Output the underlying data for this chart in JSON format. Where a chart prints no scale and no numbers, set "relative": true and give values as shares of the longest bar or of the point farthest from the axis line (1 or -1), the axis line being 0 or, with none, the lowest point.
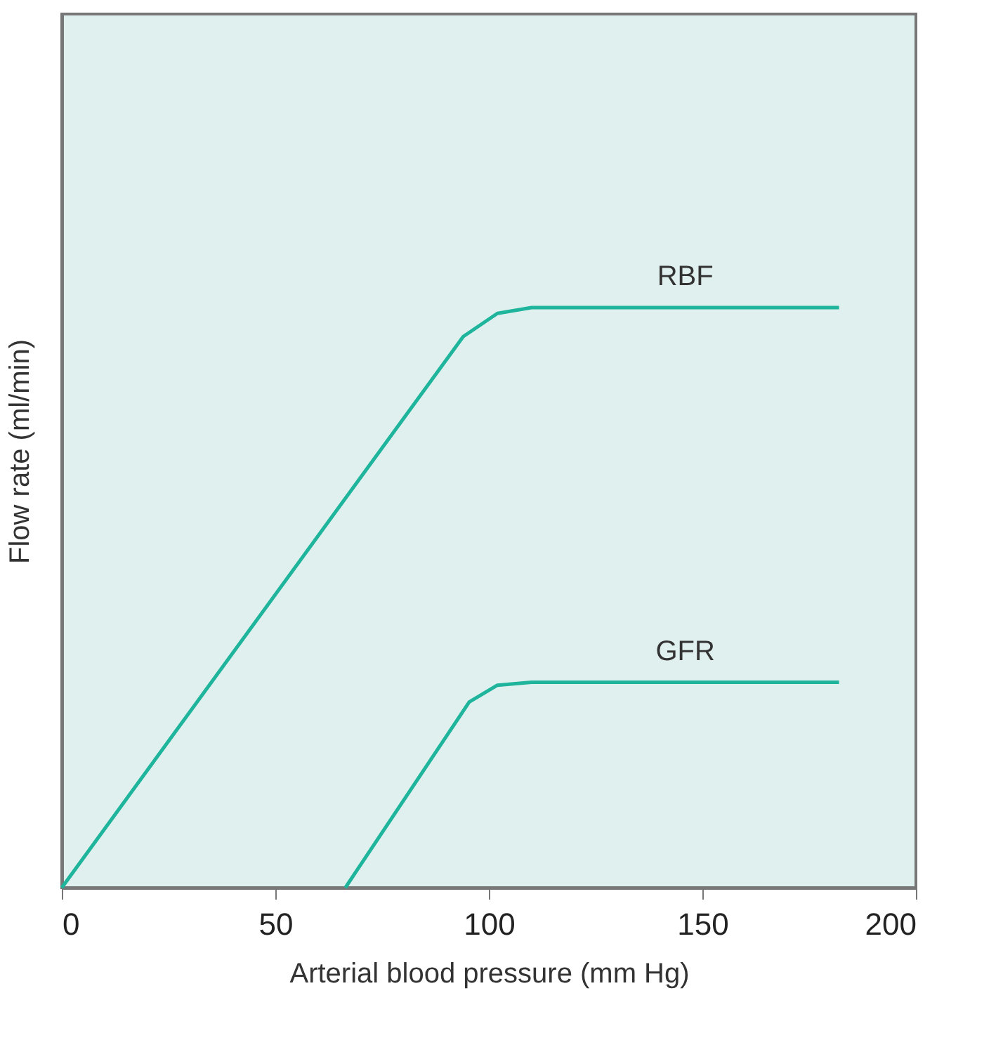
{
  "chart_data": {
    "type": "line",
    "xlabel": "Arterial blood pressure (mm Hg)",
    "ylabel": "Flow rate (ml/min)",
    "relative": true,
    "xlim": [
      0,
      200
    ],
    "xticks": [
      0,
      50,
      100,
      150,
      200
    ],
    "grid": false,
    "legend": false,
    "marker": "none",
    "line_style": "solid",
    "series": [
      {
        "name": "RBF",
        "color": "#1fb59c",
        "x": [
          0,
          94,
          102,
          110,
          182
        ],
        "values": [
          0,
          0.95,
          0.99,
          1,
          1
        ]
      },
      {
        "name": "GFR",
        "color": "#1fb59c",
        "x": [
          66.4,
          95.4,
          102,
          110,
          182
        ],
        "values": [
          0,
          0.32,
          0.349,
          0.354,
          0.354
        ]
      }
    ]
  }
}
